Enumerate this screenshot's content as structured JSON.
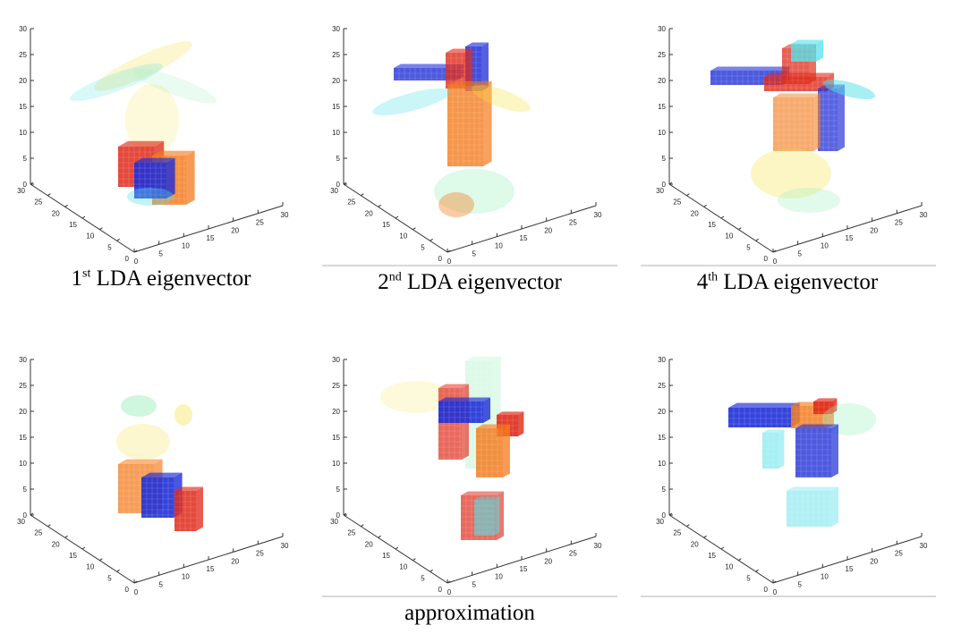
{
  "figure": {
    "captions": [
      {
        "ord": "1",
        "sup": "st",
        "text": " LDA eigenvector"
      },
      {
        "ord": "2",
        "sup": "nd",
        "text": " LDA eigenvector"
      },
      {
        "ord": "4",
        "sup": "th",
        "text": " LDA eigenvector"
      }
    ],
    "bottom_caption": "approximation"
  },
  "chart_data": [
    {
      "type": "3d-voxel",
      "row": "eigenvector",
      "index": 1,
      "axes": {
        "x": [
          0,
          30
        ],
        "y": [
          0,
          30
        ],
        "z": [
          0,
          30
        ]
      },
      "tick_labels": {
        "z": [
          "0",
          "5",
          "10",
          "15",
          "20",
          "25",
          "30"
        ],
        "left": [
          "0",
          "5",
          "10",
          "15",
          "20",
          "25",
          "30"
        ],
        "right": [
          "0",
          "5",
          "10",
          "15",
          "20",
          "25",
          "30"
        ]
      }
    },
    {
      "type": "3d-voxel",
      "row": "eigenvector",
      "index": 2,
      "axes": {
        "x": [
          0,
          30
        ],
        "y": [
          0,
          30
        ],
        "z": [
          0,
          30
        ]
      },
      "tick_labels": {
        "z": [
          "0",
          "5",
          "10",
          "15",
          "20",
          "25",
          "30"
        ],
        "left": [
          "0",
          "5",
          "10",
          "15",
          "20",
          "25",
          "30"
        ],
        "right": [
          "0",
          "5",
          "10",
          "15",
          "20",
          "25",
          "30"
        ]
      }
    },
    {
      "type": "3d-voxel",
      "row": "eigenvector",
      "index": 4,
      "axes": {
        "x": [
          0,
          30
        ],
        "y": [
          0,
          30
        ],
        "z": [
          0,
          30
        ]
      },
      "tick_labels": {
        "z": [
          "0",
          "5",
          "10",
          "15",
          "20",
          "25",
          "30"
        ],
        "left": [
          "0",
          "5",
          "10",
          "15",
          "20",
          "25",
          "30"
        ],
        "right": [
          "0",
          "5",
          "10",
          "15",
          "20",
          "25",
          "30"
        ]
      }
    },
    {
      "type": "3d-voxel",
      "row": "approximation",
      "index": 1,
      "axes": {
        "x": [
          0,
          30
        ],
        "y": [
          0,
          30
        ],
        "z": [
          0,
          30
        ]
      },
      "tick_labels": {
        "z": [
          "0",
          "5",
          "10",
          "15",
          "20",
          "25",
          "30"
        ],
        "left": [
          "0",
          "5",
          "10",
          "15",
          "20",
          "25",
          "30"
        ],
        "right": [
          "0",
          "5",
          "10",
          "15",
          "20",
          "25",
          "30"
        ]
      }
    },
    {
      "type": "3d-voxel",
      "row": "approximation",
      "index": 2,
      "axes": {
        "x": [
          0,
          30
        ],
        "y": [
          0,
          30
        ],
        "z": [
          0,
          30
        ]
      },
      "tick_labels": {
        "z": [
          "0",
          "5",
          "10",
          "15",
          "20",
          "25",
          "30"
        ],
        "left": [
          "0",
          "5",
          "10",
          "15",
          "20",
          "25",
          "30"
        ],
        "right": [
          "0",
          "5",
          "10",
          "15",
          "20",
          "25",
          "30"
        ]
      }
    },
    {
      "type": "3d-voxel",
      "row": "approximation",
      "index": 4,
      "axes": {
        "x": [
          0,
          30
        ],
        "y": [
          0,
          30
        ],
        "z": [
          0,
          30
        ]
      },
      "tick_labels": {
        "z": [
          "0",
          "5",
          "10",
          "15",
          "20",
          "25",
          "30"
        ],
        "left": [
          "0",
          "5",
          "10",
          "15",
          "20",
          "25",
          "30"
        ],
        "right": [
          "0",
          "5",
          "10",
          "15",
          "20",
          "25",
          "30"
        ]
      }
    }
  ],
  "colors": {
    "red": "#e02a1a",
    "orange": "#f47d20",
    "yellow": "#f2e03a",
    "cyan": "#4fe0e8",
    "blue": "#2030d8",
    "mint": "#a0f0c0",
    "axis": "#333333"
  }
}
